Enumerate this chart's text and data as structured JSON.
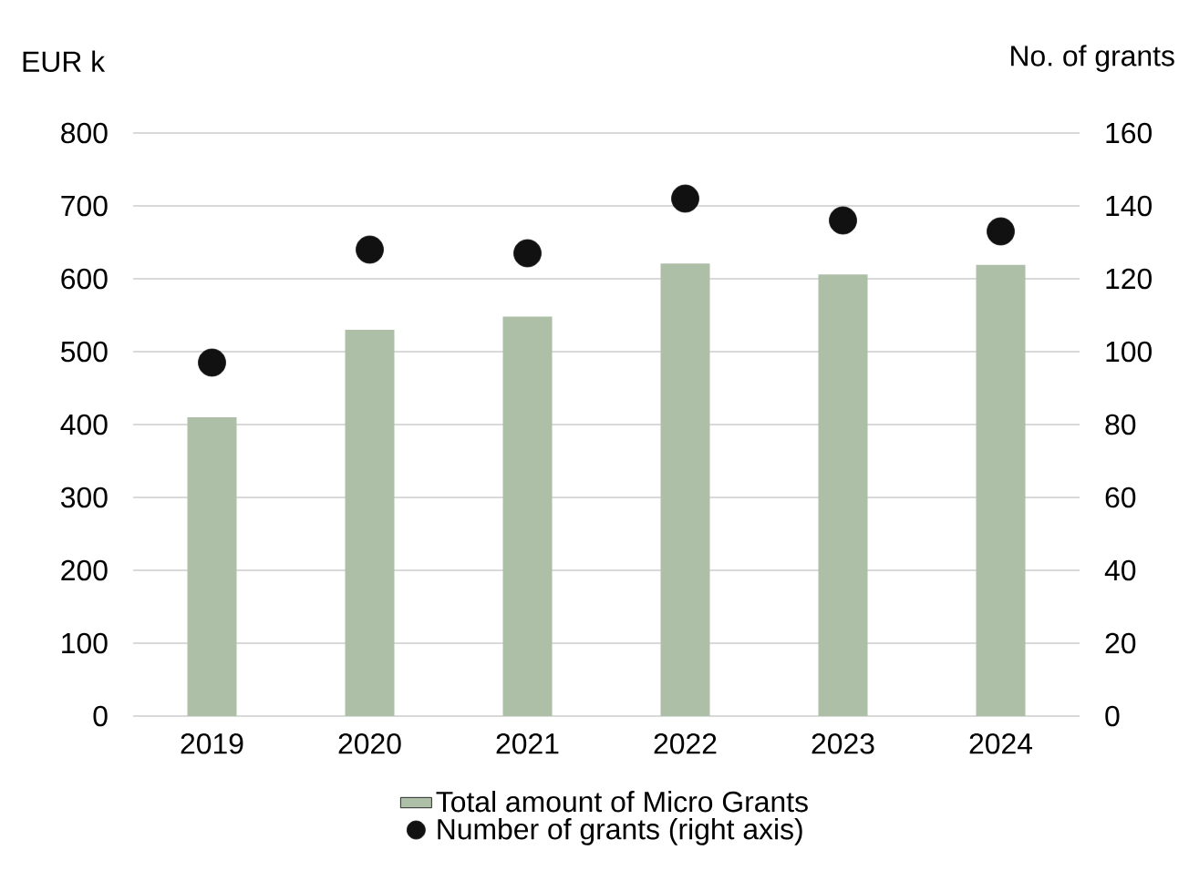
{
  "chart_data": {
    "type": "bar",
    "ylabel": "EUR k",
    "y2label": "No. of grants",
    "categories": [
      "2019",
      "2020",
      "2021",
      "2022",
      "2023",
      "2024"
    ],
    "series": [
      {
        "name": "Total amount of Micro Grants",
        "color": "#aebfa8",
        "values": [
          410,
          530,
          548,
          621,
          606,
          619
        ]
      },
      {
        "name": "Number of grants (right axis)",
        "type": "scatter",
        "axis": "y2",
        "color": "#111111",
        "values": [
          97,
          128,
          127,
          142,
          136,
          133
        ]
      }
    ],
    "ylim": [
      0,
      800
    ],
    "yticks": [
      0,
      100,
      200,
      300,
      400,
      500,
      600,
      700,
      800
    ],
    "y2lim": [
      0,
      160
    ],
    "y2ticks": [
      0,
      20,
      40,
      60,
      80,
      100,
      120,
      140,
      160
    ],
    "grid": "y",
    "legend": "bottom"
  }
}
